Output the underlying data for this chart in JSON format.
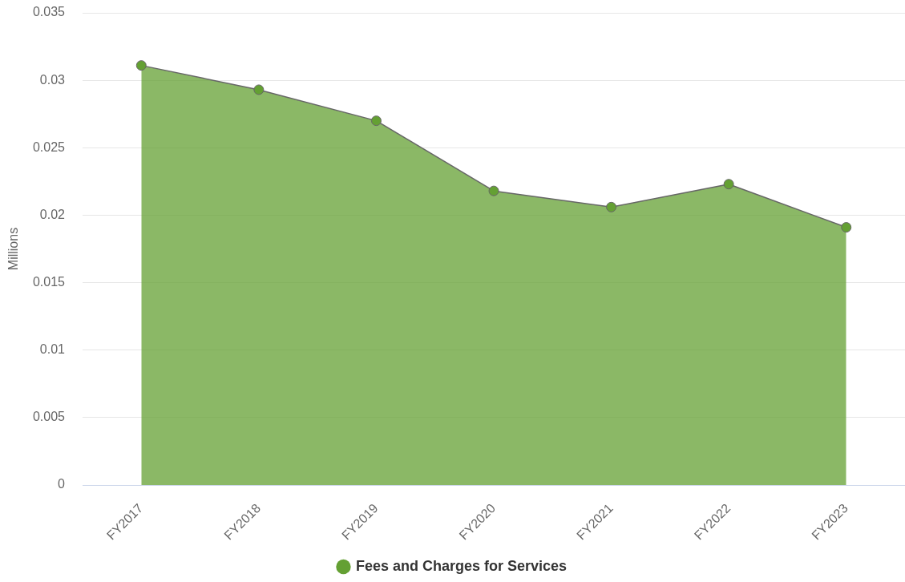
{
  "chart_data": {
    "type": "area",
    "categories": [
      "FY2017",
      "FY2018",
      "FY2019",
      "FY2020",
      "FY2021",
      "FY2022",
      "FY2023"
    ],
    "series": [
      {
        "name": "Fees and Charges for Services",
        "color": "#64a033",
        "values": [
          0.0311,
          0.0293,
          0.027,
          0.0218,
          0.0206,
          0.0223,
          0.0191
        ]
      }
    ],
    "ylabel": "Millions",
    "ylim": [
      0,
      0.035
    ],
    "yticks": [
      0,
      0.005,
      0.01,
      0.015,
      0.02,
      0.025,
      0.03,
      0.035
    ],
    "grid": "y",
    "legend": "bottom",
    "marker": "circle"
  }
}
